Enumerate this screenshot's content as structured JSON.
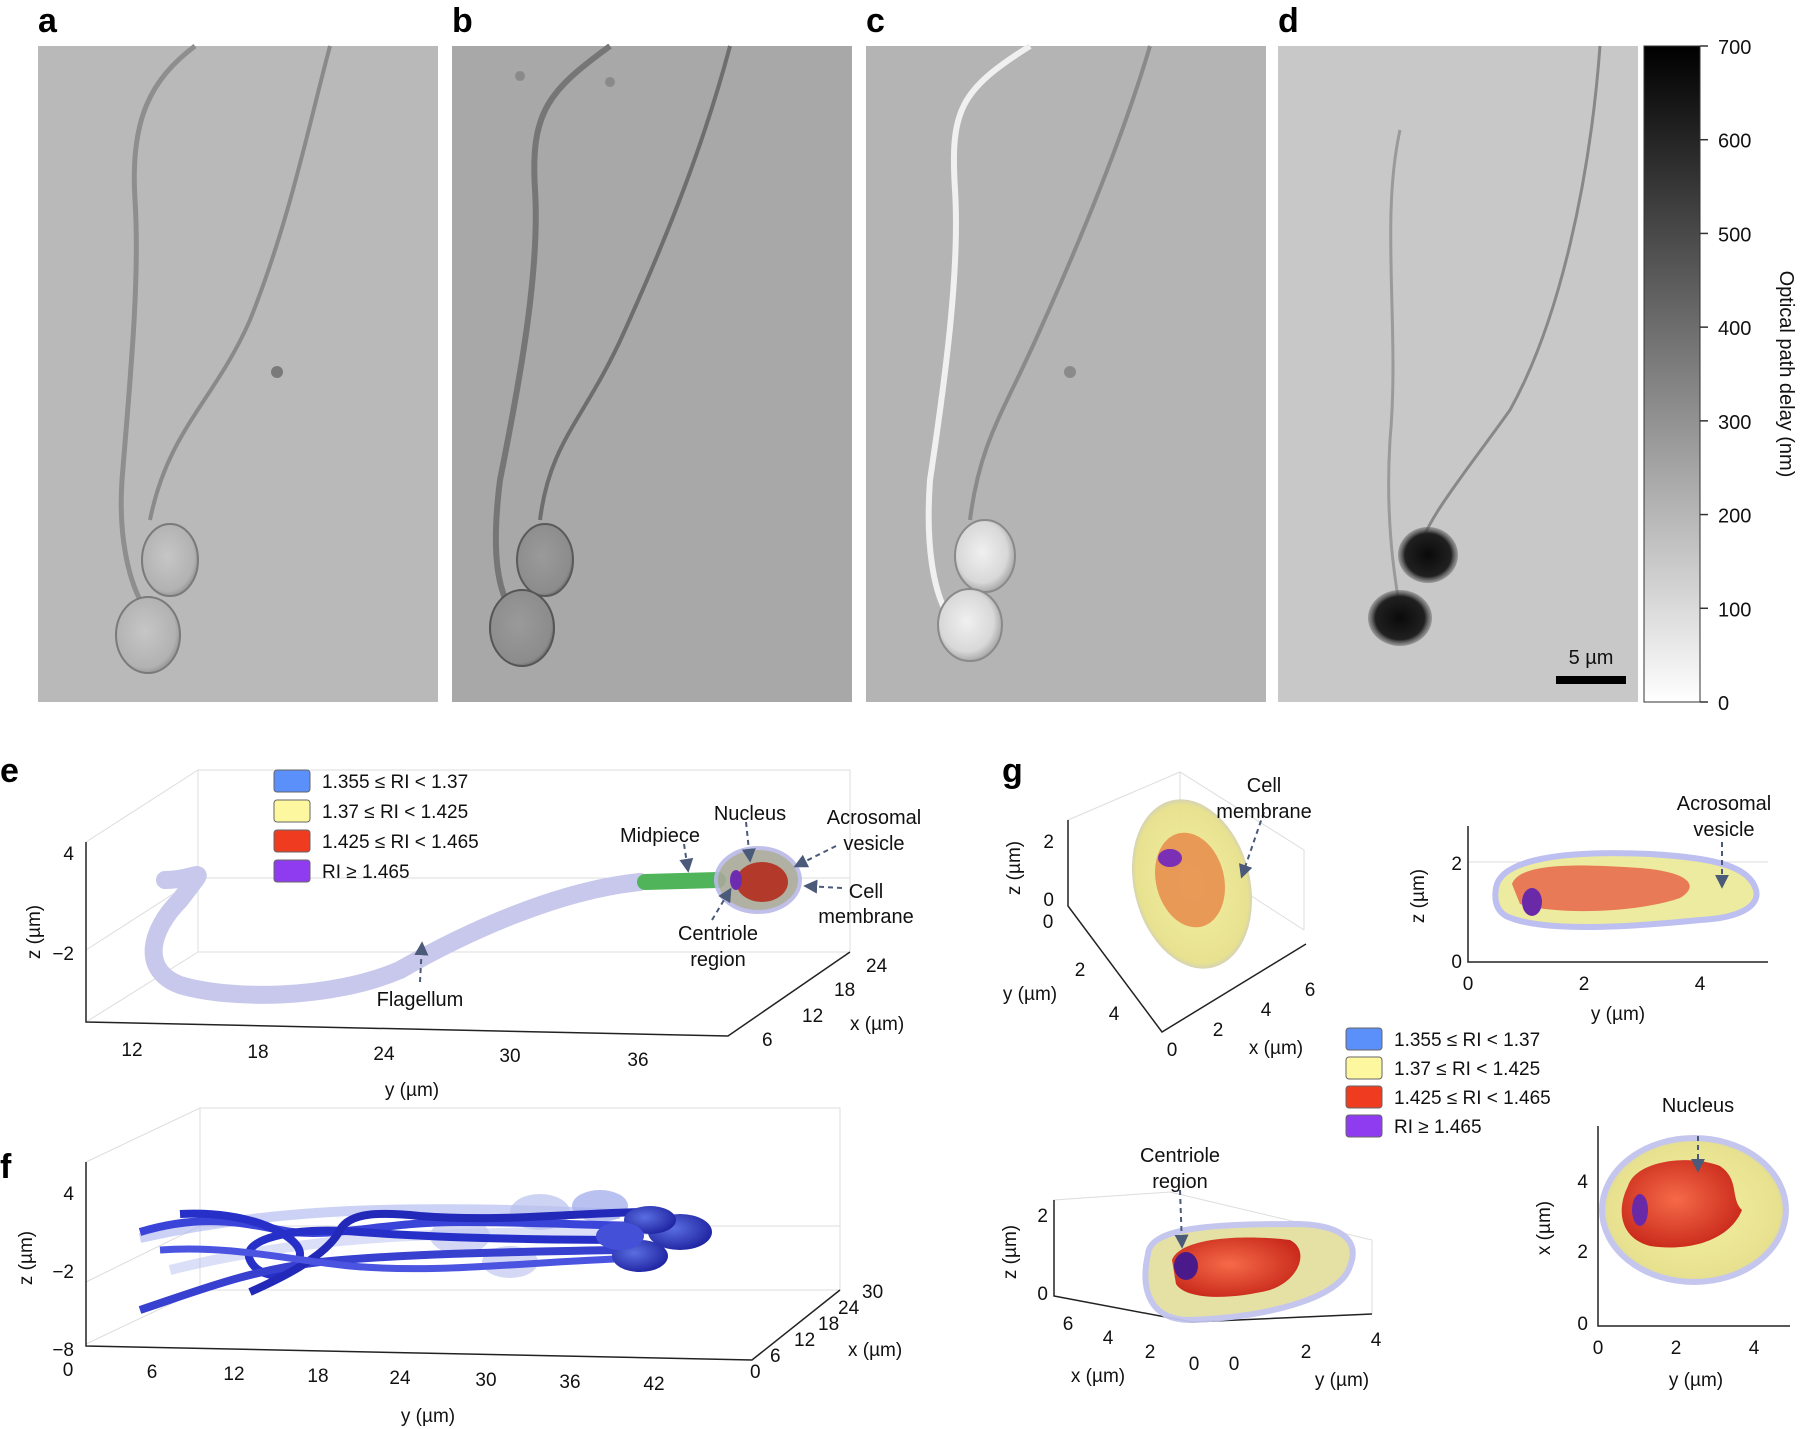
{
  "panels": {
    "a": "a",
    "b": "b",
    "c": "c",
    "d": "d",
    "e": "e",
    "f": "f",
    "g": "g"
  },
  "colorbar": {
    "ticks": [
      "700",
      "600",
      "500",
      "400",
      "300",
      "200",
      "100",
      "0"
    ],
    "label": "Optical path delay (nm)"
  },
  "scale_bar": "5 µm",
  "legend": [
    {
      "label": "1.355 ≤ RI < 1.37",
      "color": "#5b8ff9"
    },
    {
      "label": "1.37 ≤ RI < 1.425",
      "color": "#fdf7a0"
    },
    {
      "label": "1.425 ≤ RI < 1.465",
      "color": "#ef3b1f"
    },
    {
      "label": "RI ≥ 1.465",
      "color": "#8f3cf0"
    }
  ],
  "e": {
    "annotations": {
      "midpiece": "Midpiece",
      "nucleus": "Nucleus",
      "acrosomal": "Acrosomal",
      "vesicle": "vesicle",
      "cell": "Cell",
      "membrane": "membrane",
      "centriole": "Centriole",
      "region": "region",
      "flagellum": "Flagellum"
    },
    "z_ticks": [
      "4",
      "−2"
    ],
    "y_ticks": [
      "12",
      "18",
      "24",
      "30",
      "36"
    ],
    "x_ticks": [
      "24",
      "18",
      "12",
      "6"
    ],
    "zlabel": "z (µm)",
    "ylabel": "y (µm)",
    "xlabel": "x (µm)"
  },
  "f": {
    "z_ticks": [
      "4",
      "−2",
      "−8"
    ],
    "y_ticks": [
      "0",
      "6",
      "12",
      "18",
      "24",
      "30",
      "36",
      "42"
    ],
    "x_ticks": [
      "30",
      "24",
      "18",
      "12",
      "6",
      "0"
    ],
    "zlabel": "z (µm)",
    "ylabel": "y (µm)",
    "xlabel": "x (µm)"
  },
  "g": {
    "tl": {
      "z_ticks": [
        "2",
        "0"
      ],
      "y_ticks": [
        "0",
        "2",
        "4"
      ],
      "x_ticks": [
        "0",
        "2",
        "4",
        "6"
      ],
      "zlabel": "z (µm)",
      "ylabel": "y (µm)",
      "xlabel": "x (µm)",
      "ann1": "Cell",
      "ann2": "membrane"
    },
    "tr": {
      "z_ticks": [
        "2",
        "0"
      ],
      "y_ticks": [
        "0",
        "2",
        "4"
      ],
      "zlabel": "z (µm)",
      "ylabel": "y (µm)",
      "ann1": "Acrosomal",
      "ann2": "vesicle"
    },
    "bl": {
      "z_ticks": [
        "2",
        "0"
      ],
      "x_ticks": [
        "6",
        "4",
        "2",
        "0"
      ],
      "y_ticks": [
        "0",
        "2",
        "4"
      ],
      "zlabel": "z (µm)",
      "xlabel": "x (µm)",
      "ylabel": "y (µm)",
      "ann1": "Centriole",
      "ann2": "region"
    },
    "br": {
      "x_ticks": [
        "4",
        "2",
        "0"
      ],
      "y_ticks": [
        "0",
        "2",
        "4"
      ],
      "xlabel": "x (µm)",
      "ylabel": "y (µm)",
      "ann1": "Nucleus"
    }
  }
}
